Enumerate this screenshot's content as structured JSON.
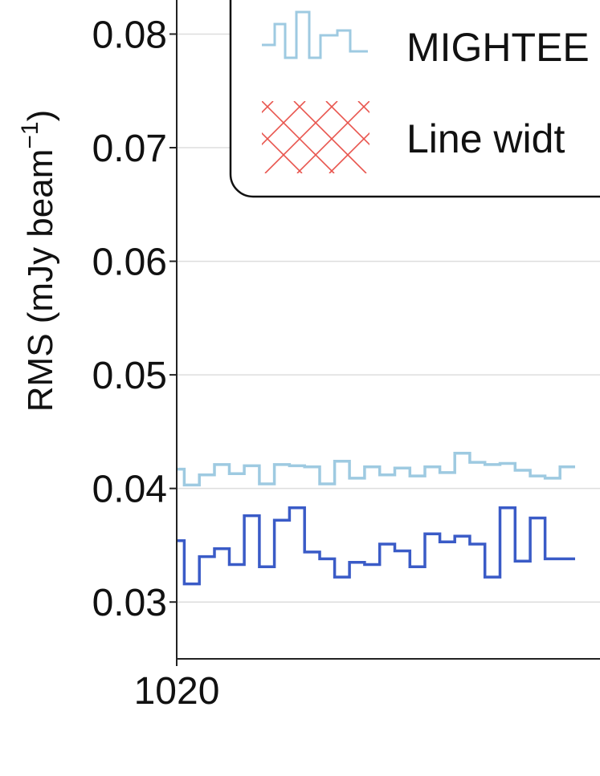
{
  "chart_data": {
    "type": "line",
    "ylabel_main": "RMS (mJy beam",
    "ylabel_sup": "−1",
    "ylabel_close": ")",
    "xlabel": "",
    "xlim": [
      1020,
      1045
    ],
    "ylim": [
      0.025,
      0.083
    ],
    "yticks": [
      0.03,
      0.04,
      0.05,
      0.06,
      0.07,
      0.08
    ],
    "ytick_labels": [
      "0.03",
      "0.04",
      "0.05",
      "0.06",
      "0.07",
      "0.08"
    ],
    "xticks": [
      1020
    ],
    "xtick_labels": [
      "1020"
    ],
    "grid": true,
    "legend_position": "top",
    "legend": [
      {
        "label": "MIGHTEE",
        "style": "step-line",
        "color": "#9ecae1"
      },
      {
        "label": "Line widt",
        "style": "hatch",
        "color": "#e8554e"
      }
    ],
    "series": [
      {
        "name": "MIGHTEE",
        "color": "#9ecae1",
        "drawstyle": "steps-mid",
        "x": [
          1020.0,
          1020.43,
          1020.86,
          1021.29,
          1021.71,
          1022.14,
          1022.57,
          1023.0,
          1023.43,
          1023.86,
          1024.29,
          1024.71,
          1025.14,
          1025.57,
          1026.0,
          1026.43,
          1026.86,
          1027.29,
          1027.71,
          1028.14,
          1028.57,
          1029.0,
          1029.43,
          1029.86,
          1030.29,
          1030.71,
          1031.14
        ],
        "y": [
          0.0417,
          0.0403,
          0.0412,
          0.0421,
          0.0413,
          0.042,
          0.0404,
          0.0421,
          0.042,
          0.0419,
          0.0404,
          0.0424,
          0.0409,
          0.0419,
          0.0412,
          0.0418,
          0.0411,
          0.0419,
          0.0414,
          0.0431,
          0.0423,
          0.0421,
          0.0422,
          0.0416,
          0.0411,
          0.0409,
          0.0419
        ]
      },
      {
        "name": "",
        "color": "#3a5bc7",
        "drawstyle": "steps-mid",
        "x": [
          1020.0,
          1020.43,
          1020.86,
          1021.29,
          1021.71,
          1022.14,
          1022.57,
          1023.0,
          1023.43,
          1023.86,
          1024.29,
          1024.71,
          1025.14,
          1025.57,
          1026.0,
          1026.43,
          1026.86,
          1027.29,
          1027.71,
          1028.14,
          1028.57,
          1029.0,
          1029.43,
          1029.86,
          1030.29,
          1030.71,
          1031.14
        ],
        "y": [
          0.0354,
          0.0316,
          0.034,
          0.0347,
          0.0333,
          0.0376,
          0.0331,
          0.0372,
          0.0383,
          0.0344,
          0.0338,
          0.0322,
          0.0335,
          0.0333,
          0.0351,
          0.0345,
          0.0331,
          0.036,
          0.0353,
          0.0358,
          0.0351,
          0.0322,
          0.0383,
          0.0336,
          0.0374,
          0.0338,
          0.0338
        ]
      }
    ]
  }
}
